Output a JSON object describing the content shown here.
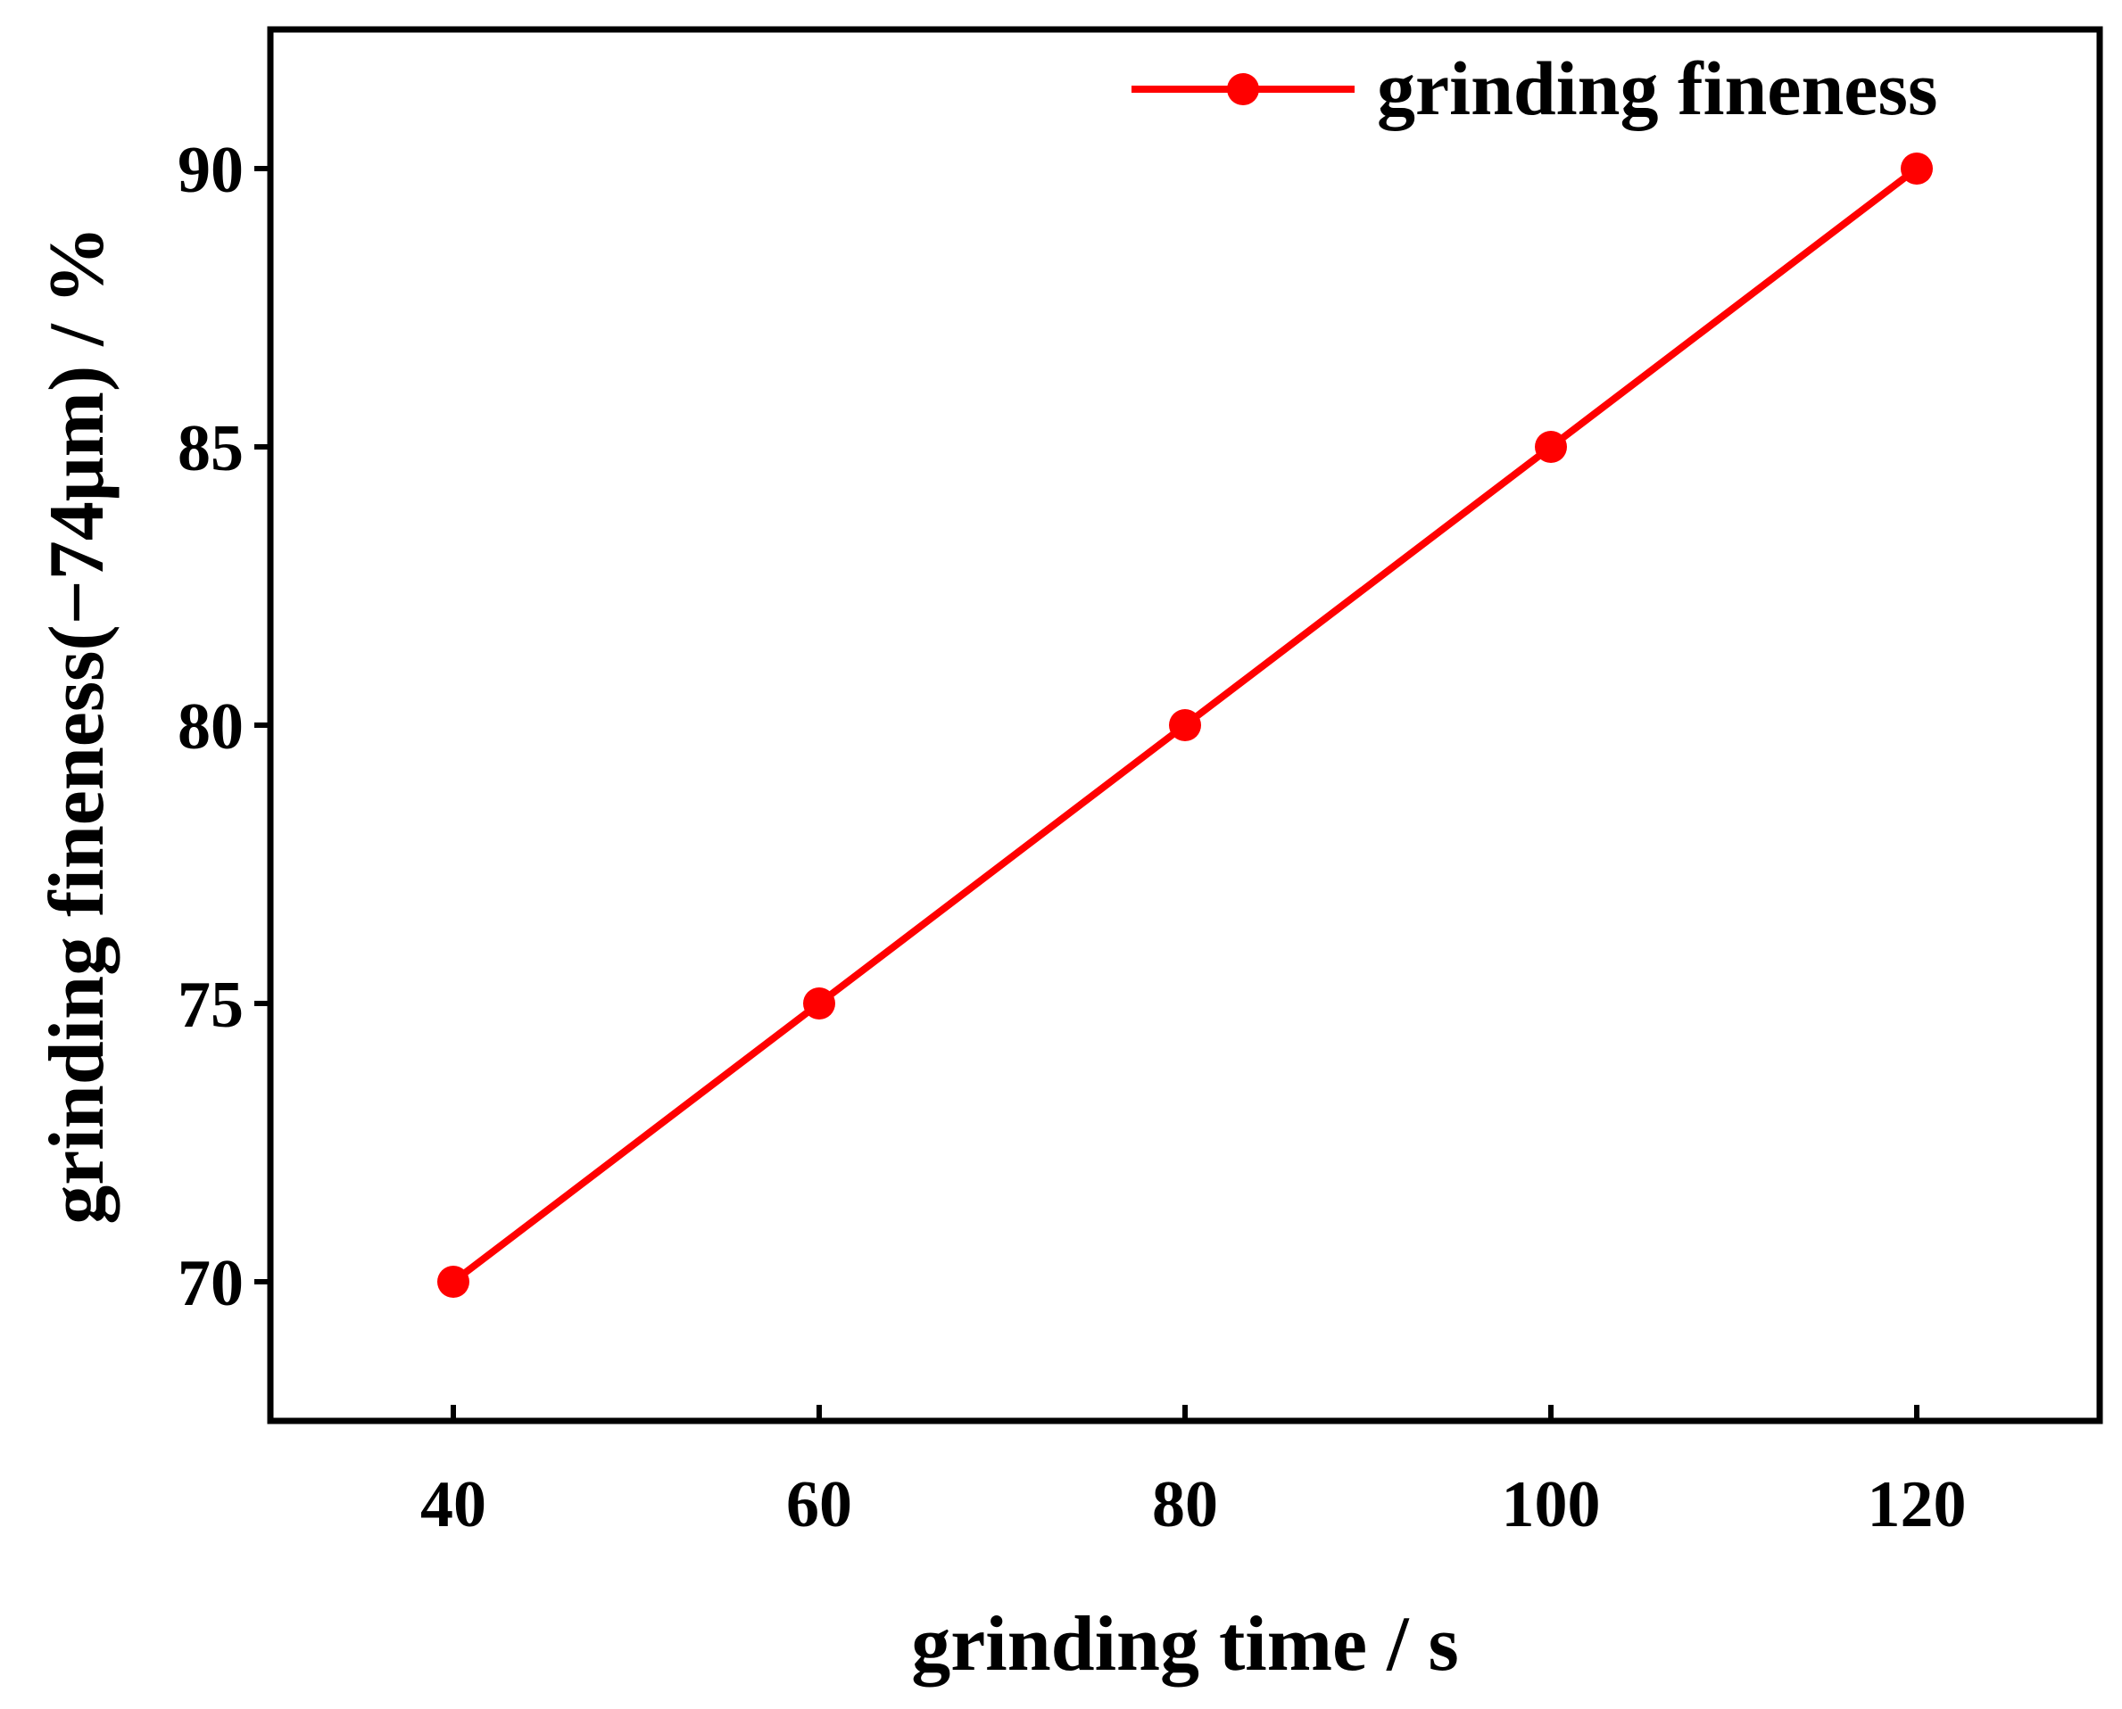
{
  "chart_data": {
    "type": "line",
    "xlabel": "grinding time / s",
    "ylabel": "grinding fineness(−74μm) / %",
    "xlim": [
      30,
      130
    ],
    "ylim": [
      67.5,
      92.5
    ],
    "xticks": [
      40,
      60,
      80,
      100,
      120
    ],
    "yticks": [
      70,
      75,
      80,
      85,
      90
    ],
    "xtick_labels": [
      "40",
      "60",
      "80",
      "100",
      "120"
    ],
    "ytick_labels": [
      "70",
      "75",
      "80",
      "85",
      "90"
    ],
    "grid": false,
    "legend_position": "top-right",
    "series": [
      {
        "name": "grinding fineness",
        "color": "#ff0000",
        "marker": "circle",
        "x": [
          40,
          60,
          80,
          100,
          120
        ],
        "y": [
          70,
          75,
          80,
          85,
          90
        ]
      }
    ]
  }
}
